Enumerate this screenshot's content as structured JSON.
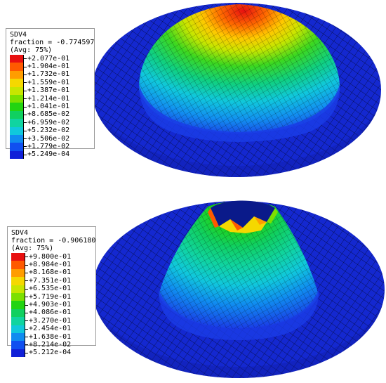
{
  "top": {
    "legend": {
      "variable": "SDV4",
      "fraction": "fraction = -0.774597",
      "avg": "(Avg: 75%)",
      "labels": [
        "+2.077e-01",
        "+1.904e-01",
        "+1.732e-01",
        "+1.559e-01",
        "+1.387e-01",
        "+1.214e-01",
        "+1.041e-01",
        "+8.685e-02",
        "+6.959e-02",
        "+5.232e-02",
        "+3.506e-02",
        "+1.779e-02",
        "+5.249e-04"
      ]
    }
  },
  "bottom": {
    "legend": {
      "variable": "SDV4",
      "fraction": "fraction = -0.906180",
      "avg": "(Avg: 75%)",
      "labels": [
        "+9.800e-01",
        "+8.984e-01",
        "+8.168e-01",
        "+7.351e-01",
        "+6.535e-01",
        "+5.719e-01",
        "+4.903e-01",
        "+4.086e-01",
        "+3.270e-01",
        "+2.454e-01",
        "+1.638e-01",
        "+8.214e-02",
        "+5.212e-04"
      ]
    }
  },
  "colors": {
    "scale": [
      "#e81010",
      "#ff5a00",
      "#ff9d00",
      "#f5d800",
      "#c8e600",
      "#7ce000",
      "#22d411",
      "#10d060",
      "#10d4a0",
      "#10c8dc",
      "#108cf0",
      "#1050f0",
      "#1020d8"
    ],
    "plate": "#1428d0",
    "mesh": "#000000"
  }
}
